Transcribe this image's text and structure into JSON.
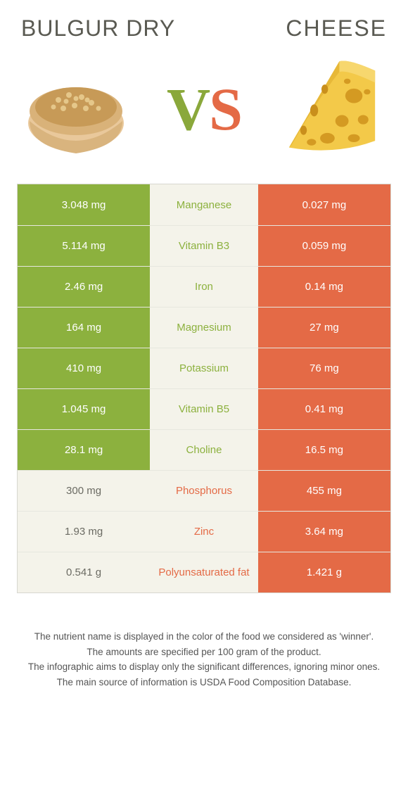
{
  "colors": {
    "green": "#8cb13e",
    "orange": "#e46a46",
    "panel": "#f4f3ea",
    "border": "#d7d7d0",
    "text": "#5a5a5a"
  },
  "header": {
    "left_title": "Bulgur dry",
    "right_title": "Cheese",
    "vs_v": "V",
    "vs_s": "S",
    "left_icon": "bulgur-bowl-icon",
    "right_icon": "cheese-wedge-icon"
  },
  "rows": [
    {
      "nutrient": "Manganese",
      "left": "3.048 mg",
      "right": "0.027 mg",
      "winner": "left"
    },
    {
      "nutrient": "Vitamin B3",
      "left": "5.114 mg",
      "right": "0.059 mg",
      "winner": "left"
    },
    {
      "nutrient": "Iron",
      "left": "2.46 mg",
      "right": "0.14 mg",
      "winner": "left"
    },
    {
      "nutrient": "Magnesium",
      "left": "164 mg",
      "right": "27 mg",
      "winner": "left"
    },
    {
      "nutrient": "Potassium",
      "left": "410 mg",
      "right": "76 mg",
      "winner": "left"
    },
    {
      "nutrient": "Vitamin B5",
      "left": "1.045 mg",
      "right": "0.41 mg",
      "winner": "left"
    },
    {
      "nutrient": "Choline",
      "left": "28.1 mg",
      "right": "16.5 mg",
      "winner": "left"
    },
    {
      "nutrient": "Phosphorus",
      "left": "300 mg",
      "right": "455 mg",
      "winner": "right"
    },
    {
      "nutrient": "Zinc",
      "left": "1.93 mg",
      "right": "3.64 mg",
      "winner": "right"
    },
    {
      "nutrient": "Polyunsaturated fat",
      "left": "0.541 g",
      "right": "1.421 g",
      "winner": "right"
    }
  ],
  "notes": {
    "l1": "The nutrient name is displayed in the color of the food we considered as 'winner'.",
    "l2": "The amounts are specified per 100 gram of the product.",
    "l3": "The infographic aims to display only the significant differences, ignoring minor ones.",
    "l4": "The main source of information is USDA Food Composition Database."
  }
}
